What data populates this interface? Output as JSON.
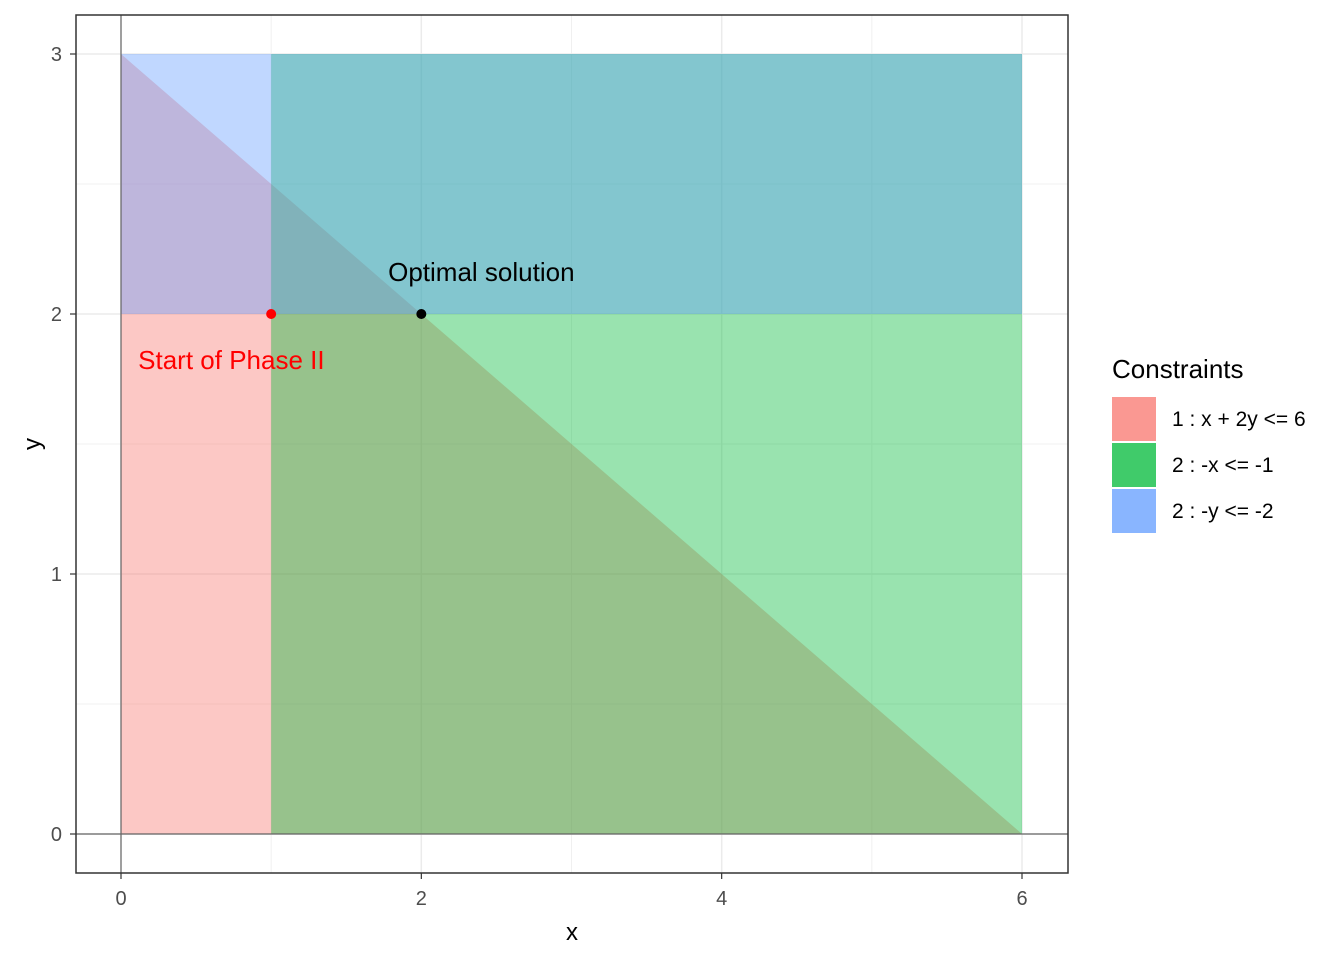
{
  "chart_data": {
    "type": "area",
    "title": "",
    "xlabel": "x",
    "ylabel": "y",
    "xlim": [
      0,
      6
    ],
    "ylim": [
      0,
      3
    ],
    "x_ticks": [
      0,
      2,
      4,
      6
    ],
    "y_ticks": [
      0,
      1,
      2,
      3
    ],
    "grid": true,
    "legend_position": "right",
    "legend_title": "Constraints",
    "regions": [
      {
        "name": "1 : x + 2y <= 6",
        "color": "#F8766D",
        "polygon": [
          [
            0,
            0
          ],
          [
            6,
            0
          ],
          [
            0,
            3
          ]
        ]
      },
      {
        "name": "2 : -x <= -1",
        "color": "#00BA38",
        "polygon": [
          [
            1,
            0
          ],
          [
            6,
            0
          ],
          [
            6,
            3
          ],
          [
            1,
            3
          ]
        ]
      },
      {
        "name": "2 : -y <= -2",
        "color": "#619CFF",
        "polygon": [
          [
            0,
            2
          ],
          [
            6,
            2
          ],
          [
            6,
            3
          ],
          [
            0,
            3
          ]
        ]
      }
    ],
    "points": [
      {
        "x": 1,
        "y": 2,
        "color": "#FF0000",
        "label": "Start of Phase II"
      },
      {
        "x": 2,
        "y": 2,
        "color": "#000000",
        "label": "Optimal solution"
      }
    ]
  }
}
